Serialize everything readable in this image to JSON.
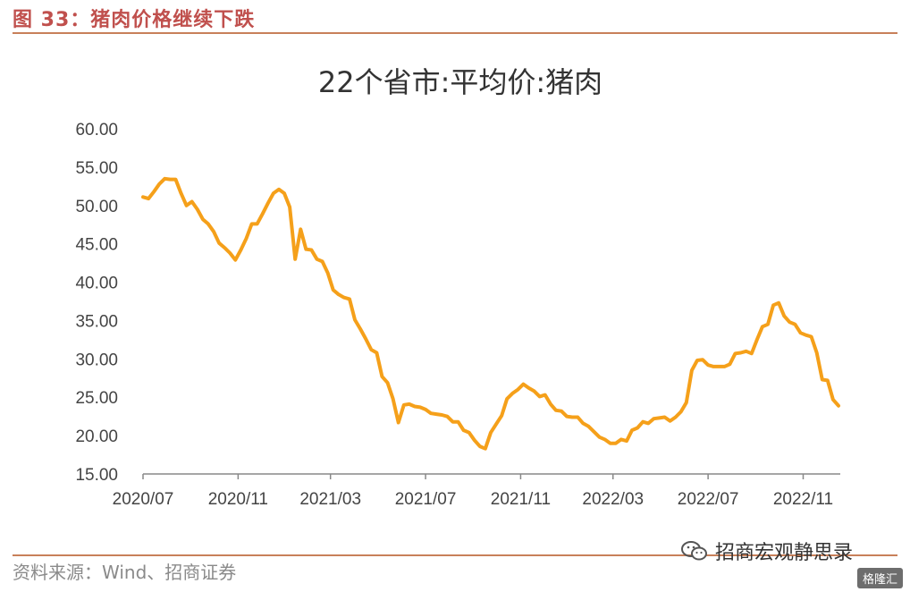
{
  "header": {
    "figure_label": "图 33：猪肉价格继续下跌"
  },
  "source": "资料来源：Wind、招商证券",
  "watermark": "招商宏观静思录",
  "badge": "格隆汇",
  "colors": {
    "line": "#f5a01a",
    "accent": "#c0504d",
    "axis": "#444444"
  },
  "chart_data": {
    "type": "line",
    "title": "22个省市:平均价:猪肉",
    "xlabel": "",
    "ylabel": "",
    "ylim": [
      15,
      60
    ],
    "yticks": [
      "15.00",
      "20.00",
      "25.00",
      "30.00",
      "35.00",
      "40.00",
      "45.00",
      "50.00",
      "55.00",
      "60.00"
    ],
    "xlim": [
      0,
      128
    ],
    "xticks": [
      {
        "label": "2020/07",
        "x": 0
      },
      {
        "label": "2020/11",
        "x": 17.5
      },
      {
        "label": "2021/03",
        "x": 34.5
      },
      {
        "label": "2021/07",
        "x": 52
      },
      {
        "label": "2021/11",
        "x": 69.5
      },
      {
        "label": "2022/03",
        "x": 86.5
      },
      {
        "label": "2022/07",
        "x": 104
      },
      {
        "label": "2022/11",
        "x": 121.5
      }
    ],
    "series": [
      {
        "values": [
          [
            0,
            51.1
          ],
          [
            1,
            50.9
          ],
          [
            2,
            51.8
          ],
          [
            3,
            52.8
          ],
          [
            4,
            53.5
          ],
          [
            5,
            53.4
          ],
          [
            6,
            53.4
          ],
          [
            7,
            51.6
          ],
          [
            8,
            50.0
          ],
          [
            9,
            50.5
          ],
          [
            10,
            49.5
          ],
          [
            11,
            48.2
          ],
          [
            12,
            47.6
          ],
          [
            13,
            46.6
          ],
          [
            14,
            45.1
          ],
          [
            15,
            44.5
          ],
          [
            16,
            43.8
          ],
          [
            17,
            42.9
          ],
          [
            18,
            44.2
          ],
          [
            19,
            45.7
          ],
          [
            20,
            47.6
          ],
          [
            21,
            47.6
          ],
          [
            22,
            48.9
          ],
          [
            23,
            50.3
          ],
          [
            24,
            51.6
          ],
          [
            25,
            52.1
          ],
          [
            26,
            51.6
          ],
          [
            27,
            49.8
          ],
          [
            28,
            43.0
          ],
          [
            29,
            46.9
          ],
          [
            30,
            44.3
          ],
          [
            31,
            44.2
          ],
          [
            32,
            43.0
          ],
          [
            33,
            42.7
          ],
          [
            34,
            41.2
          ],
          [
            35,
            39.0
          ],
          [
            36,
            38.4
          ],
          [
            37,
            38.0
          ],
          [
            38,
            37.8
          ],
          [
            39,
            35.1
          ],
          [
            40,
            33.9
          ],
          [
            41,
            32.6
          ],
          [
            42,
            31.2
          ],
          [
            43,
            30.8
          ],
          [
            44,
            27.7
          ],
          [
            45,
            26.9
          ],
          [
            46,
            24.8
          ],
          [
            47,
            21.7
          ],
          [
            48,
            24.0
          ],
          [
            49,
            24.1
          ],
          [
            50,
            23.8
          ],
          [
            51,
            23.7
          ],
          [
            52,
            23.4
          ],
          [
            53,
            22.9
          ],
          [
            54,
            22.8
          ],
          [
            55,
            22.7
          ],
          [
            56,
            22.5
          ],
          [
            57,
            21.8
          ],
          [
            58,
            21.8
          ],
          [
            59,
            20.7
          ],
          [
            60,
            20.4
          ],
          [
            61,
            19.4
          ],
          [
            62,
            18.6
          ],
          [
            63,
            18.3
          ],
          [
            64,
            20.4
          ],
          [
            65,
            21.5
          ],
          [
            66,
            22.6
          ],
          [
            67,
            24.8
          ],
          [
            68,
            25.5
          ],
          [
            69,
            26.0
          ],
          [
            70,
            26.7
          ],
          [
            71,
            26.2
          ],
          [
            72,
            25.8
          ],
          [
            73,
            25.1
          ],
          [
            74,
            25.3
          ],
          [
            75,
            24.1
          ],
          [
            76,
            23.3
          ],
          [
            77,
            23.2
          ],
          [
            78,
            22.5
          ],
          [
            79,
            22.4
          ],
          [
            80,
            22.4
          ],
          [
            81,
            21.6
          ],
          [
            82,
            21.2
          ],
          [
            83,
            20.5
          ],
          [
            84,
            19.8
          ],
          [
            85,
            19.5
          ],
          [
            86,
            19.0
          ],
          [
            87,
            19.0
          ],
          [
            88,
            19.5
          ],
          [
            89,
            19.3
          ],
          [
            90,
            20.7
          ],
          [
            91,
            21.0
          ],
          [
            92,
            21.8
          ],
          [
            93,
            21.6
          ],
          [
            94,
            22.2
          ],
          [
            95,
            22.3
          ],
          [
            96,
            22.4
          ],
          [
            97,
            21.9
          ],
          [
            98,
            22.4
          ],
          [
            99,
            23.1
          ],
          [
            100,
            24.3
          ],
          [
            101,
            28.5
          ],
          [
            102,
            29.8
          ],
          [
            103,
            29.9
          ],
          [
            104,
            29.2
          ],
          [
            105,
            29.0
          ],
          [
            106,
            29.0
          ],
          [
            107,
            29.0
          ],
          [
            108,
            29.3
          ],
          [
            109,
            30.7
          ],
          [
            110,
            30.8
          ],
          [
            111,
            31.0
          ],
          [
            112,
            30.7
          ],
          [
            113,
            32.5
          ],
          [
            114,
            34.2
          ],
          [
            115,
            34.5
          ],
          [
            116,
            37.0
          ],
          [
            117,
            37.3
          ],
          [
            118,
            35.6
          ],
          [
            119,
            34.8
          ],
          [
            120,
            34.5
          ],
          [
            121,
            33.4
          ],
          [
            122,
            33.1
          ],
          [
            123,
            32.9
          ],
          [
            124,
            30.8
          ],
          [
            125,
            27.3
          ],
          [
            126,
            27.2
          ],
          [
            127,
            24.7
          ],
          [
            128,
            23.9
          ]
        ]
      }
    ]
  }
}
